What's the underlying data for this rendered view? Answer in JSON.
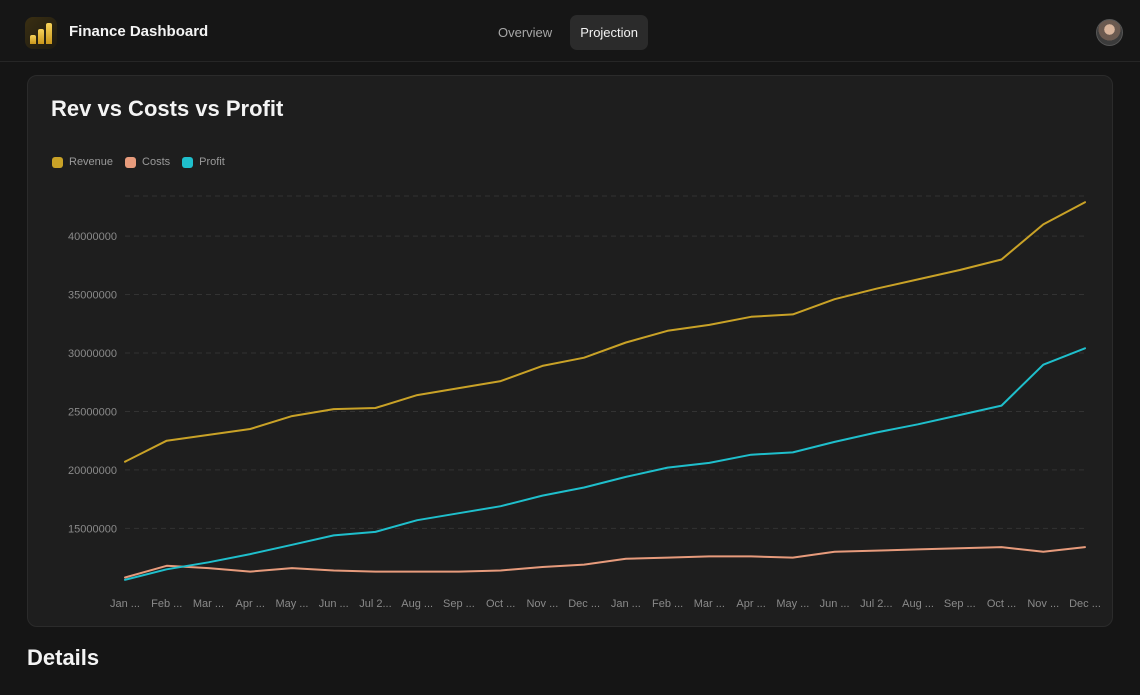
{
  "header": {
    "app_title": "Finance Dashboard",
    "tabs": [
      {
        "label": "Overview",
        "active": false
      },
      {
        "label": "Projection",
        "active": true
      }
    ]
  },
  "details_heading": "Details",
  "colors": {
    "revenue": "#c9a227",
    "costs": "#e79b7c",
    "profit": "#1fbfcc",
    "gridline": "#333333",
    "tick_text": "#8a8a8a"
  },
  "chart_data": {
    "type": "line",
    "title": "Rev vs Costs vs Profit",
    "legend_position": "top-left",
    "grid": true,
    "ylim": [
      10500000,
      43600000
    ],
    "y_ticks": [
      "15000000",
      "20000000",
      "25000000",
      "30000000",
      "35000000",
      "40000000"
    ],
    "y_tick_values": [
      15000000,
      20000000,
      25000000,
      30000000,
      35000000,
      40000000
    ],
    "categories": [
      "Jan ...",
      "Feb ...",
      "Mar ...",
      "Apr ...",
      "May ...",
      "Jun ...",
      "Jul 2...",
      "Aug ...",
      "Sep ...",
      "Oct ...",
      "Nov ...",
      "Dec ...",
      "Jan ...",
      "Feb ...",
      "Mar ...",
      "Apr ...",
      "May ...",
      "Jun ...",
      "Jul 2...",
      "Aug ...",
      "Sep ...",
      "Oct ...",
      "Nov ...",
      "Dec ..."
    ],
    "series": [
      {
        "name": "Revenue",
        "color": "#c9a227",
        "values": [
          20700000,
          22500000,
          23000000,
          23500000,
          24600000,
          25200000,
          25300000,
          26400000,
          27000000,
          27600000,
          28900000,
          29600000,
          30900000,
          31900000,
          32400000,
          33100000,
          33300000,
          34600000,
          35500000,
          36300000,
          37100000,
          38000000,
          41000000,
          42900000
        ]
      },
      {
        "name": "Costs",
        "color": "#e79b7c",
        "values": [
          10800000,
          11800000,
          11600000,
          11300000,
          11600000,
          11400000,
          11300000,
          11300000,
          11300000,
          11400000,
          11700000,
          11900000,
          12400000,
          12500000,
          12600000,
          12600000,
          12500000,
          13000000,
          13100000,
          13200000,
          13300000,
          13400000,
          13000000,
          13400000
        ]
      },
      {
        "name": "Profit",
        "color": "#1fbfcc",
        "values": [
          10600000,
          11500000,
          12100000,
          12800000,
          13600000,
          14400000,
          14700000,
          15700000,
          16300000,
          16900000,
          17800000,
          18500000,
          19400000,
          20200000,
          20600000,
          21300000,
          21500000,
          22400000,
          23200000,
          23900000,
          24700000,
          25500000,
          29000000,
          30400000
        ]
      }
    ]
  }
}
